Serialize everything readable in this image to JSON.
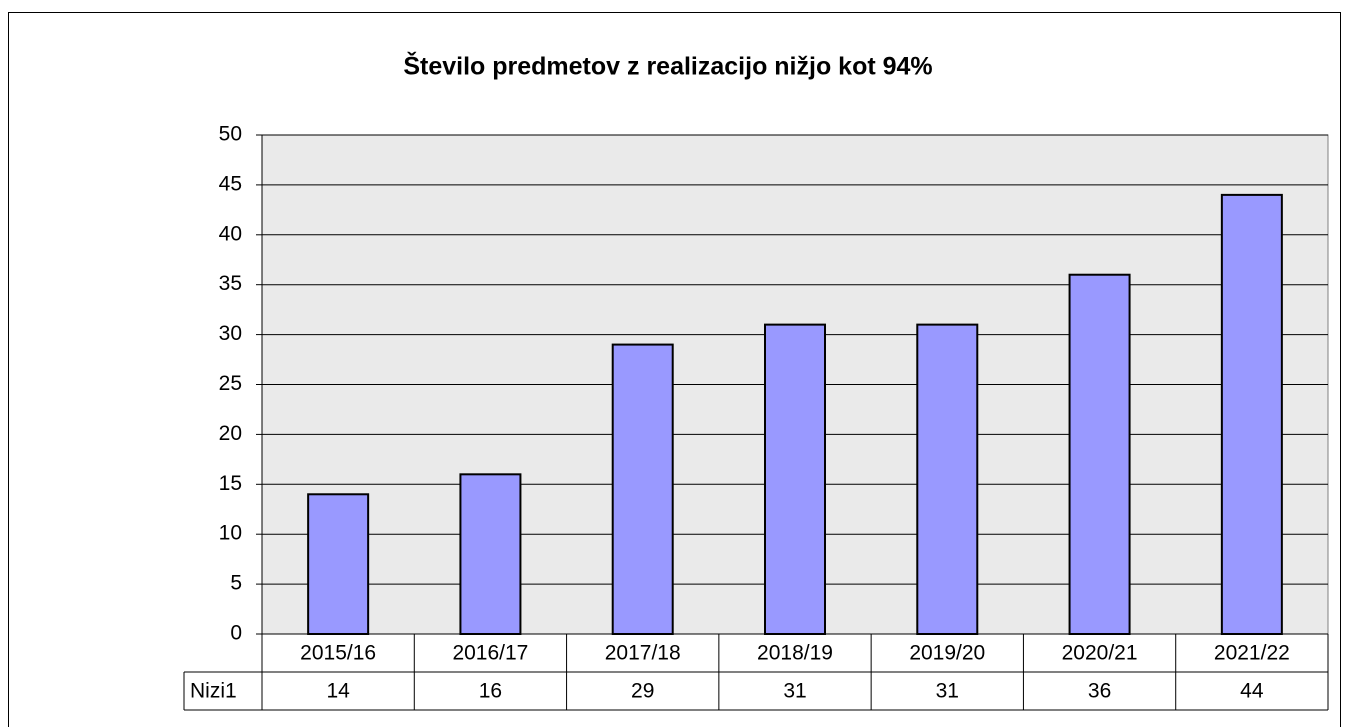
{
  "chart_data": {
    "type": "bar",
    "title": "Število predmetov z realizacijo nižjo kot 94%",
    "categories": [
      "2015/16",
      "2016/17",
      "2017/18",
      "2018/19",
      "2019/20",
      "2020/21",
      "2021/22"
    ],
    "series": [
      {
        "name": "Nizi1",
        "color": "#9999ff",
        "values": [
          14,
          16,
          29,
          31,
          31,
          36,
          44
        ]
      }
    ],
    "ylim": [
      0,
      50
    ],
    "yticks": [
      0,
      5,
      10,
      15,
      20,
      25,
      30,
      35,
      40,
      45,
      50
    ],
    "grid": true
  }
}
